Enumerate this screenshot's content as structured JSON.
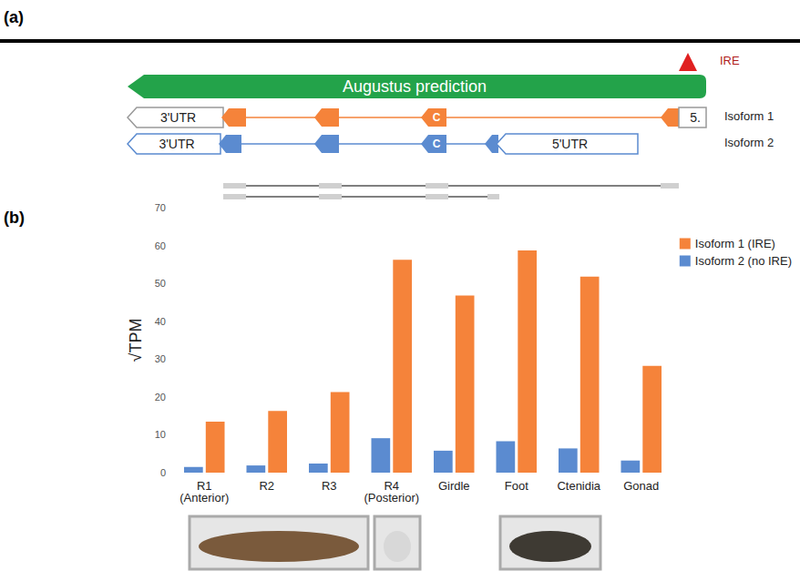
{
  "panel_labels": [
    "(a)",
    "(b)"
  ],
  "diagram": {
    "ire": "IRE",
    "prediction": "Augustus prediction",
    "isoforms": [
      {
        "label": "Isoform 1",
        "utr3": "3'UTR",
        "exon": "C",
        "utr5": "5."
      },
      {
        "label": "Isoform 2",
        "utr3": "3'UTR",
        "exon": "C",
        "utr5": "5'UTR"
      }
    ]
  },
  "chart_data": {
    "type": "bar",
    "y_label": "√TPM",
    "categories": [
      "R1 (Anterior)",
      "R2",
      "R3",
      "R4 (Posterior)",
      "Girdle",
      "Foot",
      "Ctenidia",
      "Gonad"
    ],
    "series": [
      {
        "name": "Isoform 1 (IRE)",
        "color": "#f5833a",
        "values": [
          13.5,
          16.3,
          21.3,
          56.2,
          46.8,
          58.7,
          51.8,
          28.2
        ]
      },
      {
        "name": "Isoform 2 (no IRE)",
        "color": "#5b8bd0",
        "values": [
          1.5,
          1.9,
          2.4,
          9.1,
          5.8,
          8.3,
          6.4,
          3.2
        ]
      }
    ],
    "ylim": [
      0,
      70
    ],
    "yticks": [
      0,
      10,
      20,
      30,
      40,
      50,
      60,
      70
    ],
    "grid": false,
    "legend": "top-right"
  }
}
